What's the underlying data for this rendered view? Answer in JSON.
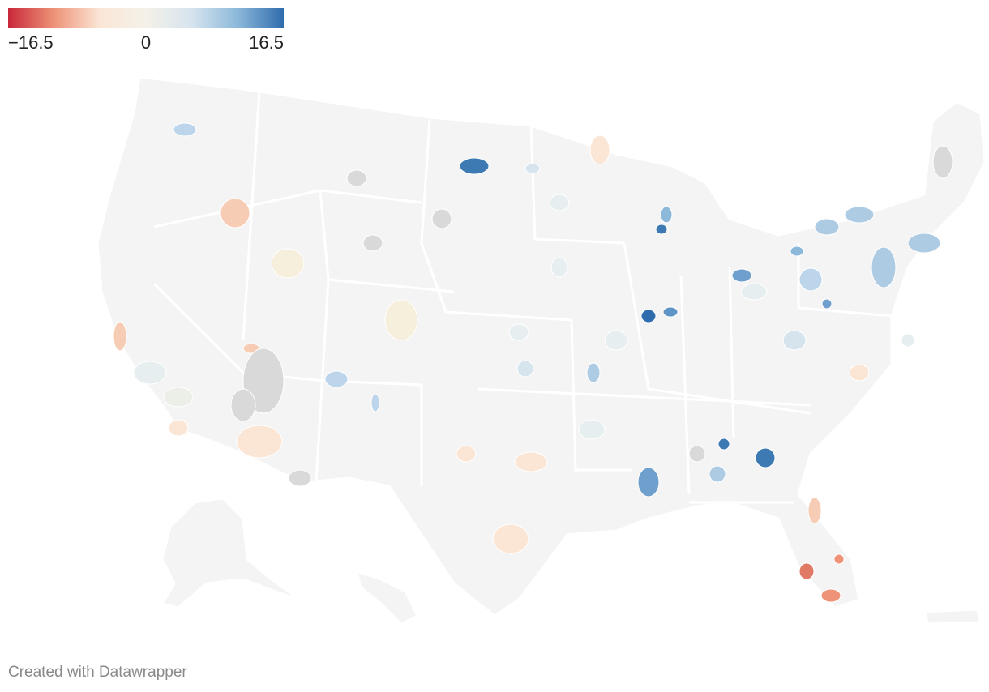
{
  "legend": {
    "min_label": "−16.5",
    "mid_label": "0",
    "max_label": "16.5",
    "min_value": -16.5,
    "max_value": 16.5,
    "stops": [
      "#c8283a",
      "#ee9378",
      "#fbe6d6",
      "#f4f1e8",
      "#d6e4ee",
      "#8cb8da",
      "#2f6cad"
    ]
  },
  "colors": {
    "land": "#f4f4f4",
    "border": "#ffffff",
    "no_data": "#d9d9d9"
  },
  "credit": "Created with Datawrapper"
}
